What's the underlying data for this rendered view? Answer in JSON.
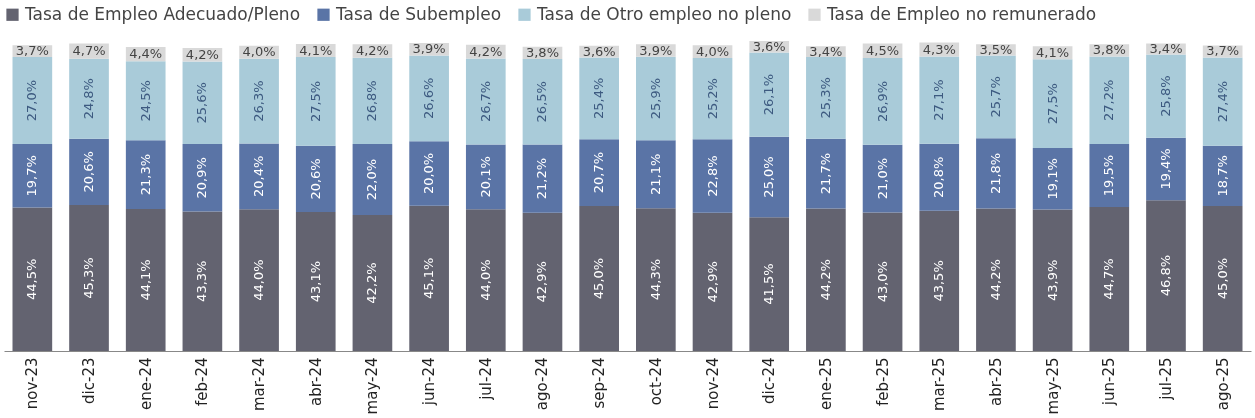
{
  "chart_data": {
    "type": "bar",
    "stacked": true,
    "legend": "top",
    "tick_labels": "x",
    "grid": false,
    "categories": [
      "nov-23",
      "dic-23",
      "ene-24",
      "feb-24",
      "mar-24",
      "abr-24",
      "may-24",
      "jun-24",
      "jul-24",
      "ago-24",
      "sep-24",
      "oct-24",
      "nov-24",
      "dic-24",
      "ene-25",
      "feb-25",
      "mar-25",
      "abr-25",
      "may-25",
      "jun-25",
      "jul-25",
      "ago-25"
    ],
    "series": [
      {
        "name": "Tasa de Empleo Adecuado/Pleno",
        "color": "#636370",
        "values": [
          44.5,
          45.3,
          44.1,
          43.3,
          44.0,
          43.1,
          42.2,
          45.1,
          44.0,
          42.9,
          45.0,
          44.3,
          42.9,
          41.5,
          44.2,
          43.0,
          43.5,
          44.2,
          43.9,
          44.7,
          46.8,
          45.0
        ],
        "value_labels": [
          "44,5%",
          "45,3%",
          "44,1%",
          "43,3%",
          "44,0%",
          "43,1%",
          "42,2%",
          "45,1%",
          "44,0%",
          "42,9%",
          "45,0%",
          "44,3%",
          "42,9%",
          "41,5%",
          "44,2%",
          "43,0%",
          "43,5%",
          "44,2%",
          "43,9%",
          "44,7%",
          "46,8%",
          "45,0%"
        ]
      },
      {
        "name": "Tasa de Subempleo",
        "color": "#5a74a6",
        "values": [
          19.7,
          20.6,
          21.3,
          20.9,
          20.4,
          20.6,
          22.0,
          20.0,
          20.1,
          21.2,
          20.7,
          21.1,
          22.8,
          25.0,
          21.7,
          21.0,
          20.8,
          21.8,
          19.1,
          19.5,
          19.4,
          18.7
        ],
        "value_labels": [
          "19,7%",
          "20,6%",
          "21,3%",
          "20,9%",
          "20,4%",
          "20,6%",
          "22,0%",
          "20,0%",
          "20,1%",
          "21,2%",
          "20,7%",
          "21,1%",
          "22,8%",
          "25,0%",
          "21,7%",
          "21,0%",
          "20,8%",
          "21,8%",
          "19,1%",
          "19,5%",
          "19,4%",
          "18,7%"
        ]
      },
      {
        "name": "Tasa de Otro empleo no pleno",
        "color": "#a9cbd9",
        "values": [
          27.0,
          24.8,
          24.5,
          25.6,
          26.3,
          27.5,
          26.8,
          26.6,
          26.7,
          26.5,
          25.4,
          25.9,
          25.2,
          26.1,
          25.3,
          26.9,
          27.1,
          25.7,
          27.5,
          27.2,
          25.8,
          27.4
        ],
        "value_labels": [
          "27,0%",
          "24,8%",
          "24,5%",
          "25,6%",
          "26,3%",
          "27,5%",
          "26,8%",
          "26,6%",
          "26,7%",
          "26,5%",
          "25,4%",
          "25,9%",
          "25,2%",
          "26,1%",
          "25,3%",
          "26,9%",
          "27,1%",
          "25,7%",
          "27,5%",
          "27,2%",
          "25,8%",
          "27,4%"
        ]
      },
      {
        "name": "Tasa de Empleo no remunerado",
        "color": "#d9d9d9",
        "values": [
          3.7,
          4.7,
          4.4,
          4.2,
          4.0,
          4.1,
          4.2,
          3.9,
          4.2,
          3.8,
          3.6,
          3.9,
          4.0,
          3.6,
          3.4,
          4.5,
          4.3,
          3.5,
          4.1,
          3.8,
          3.4,
          3.7
        ],
        "value_labels": [
          "3,7%",
          "4,7%",
          "4,4%",
          "4,2%",
          "4,0%",
          "4,1%",
          "4,2%",
          "3,9%",
          "4,2%",
          "3,8%",
          "3,6%",
          "3,9%",
          "4,0%",
          "3,6%",
          "3,4%",
          "4,5%",
          "4,3%",
          "3,5%",
          "4,1%",
          "3,8%",
          "3,4%",
          "3,7%"
        ]
      }
    ]
  }
}
